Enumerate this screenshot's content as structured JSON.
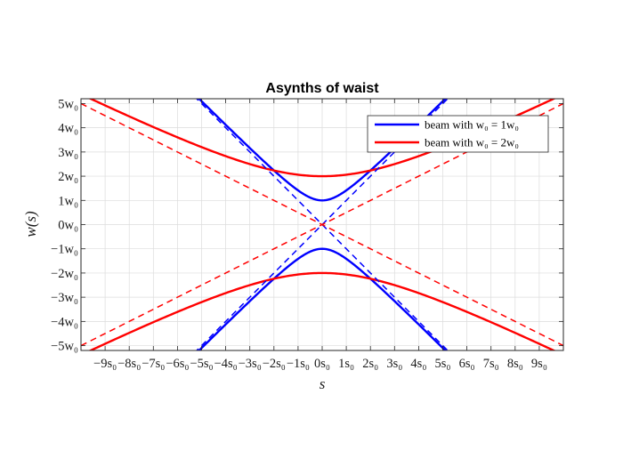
{
  "chart_data": {
    "type": "line",
    "title": "Asynths of waist",
    "xlabel": "s",
    "ylabel": "w(s)",
    "xlim": [
      -10,
      10
    ],
    "ylim": [
      -5.2,
      5.2
    ],
    "grid": true,
    "legend_position": "top-right",
    "xticks": [
      -9,
      -8,
      -7,
      -6,
      -5,
      -4,
      -3,
      -2,
      -1,
      0,
      1,
      2,
      3,
      4,
      5,
      6,
      7,
      8,
      9
    ],
    "xtick_labels": [
      "−9s₀",
      "−8s₀",
      "−7s₀",
      "−6s₀",
      "−5s₀",
      "−4s₀",
      "−3s₀",
      "−2s₀",
      "−1s₀",
      "0s₀",
      "1s₀",
      "2s₀",
      "3s₀",
      "4s₀",
      "5s₀",
      "6s₀",
      "7s₀",
      "8s₀",
      "9s₀"
    ],
    "yticks": [
      5,
      4,
      3,
      2,
      1,
      0,
      -1,
      -2,
      -3,
      -4,
      -5
    ],
    "ytick_labels": [
      "5w₀",
      "4w₀",
      "3w₀",
      "2w₀",
      "1w₀",
      "0w₀",
      "−1w₀",
      "−2w₀",
      "−3w₀",
      "−4w₀",
      "−5w₀"
    ],
    "series": [
      {
        "name": "beam with w₀ = 1w₀",
        "color": "#0000ff",
        "style": "solid",
        "curve": "w0*sqrt(1+(s/1)^2)",
        "w0": 1,
        "s0": 1,
        "both_signs": true,
        "legend": true
      },
      {
        "name": "beam with w₀ = 2w₀",
        "color": "#ff0000",
        "style": "solid",
        "curve": "w0*sqrt(1+(s/4)^2)",
        "w0": 2,
        "s0": 4,
        "both_signs": true,
        "legend": true
      },
      {
        "color": "#0000ff",
        "style": "dashed",
        "curve": "asymptote ±s",
        "slope": 1,
        "legend": false
      },
      {
        "color": "#ff0000",
        "style": "dashed",
        "curve": "asymptote ±s/2",
        "slope": 0.5,
        "legend": false
      }
    ]
  }
}
